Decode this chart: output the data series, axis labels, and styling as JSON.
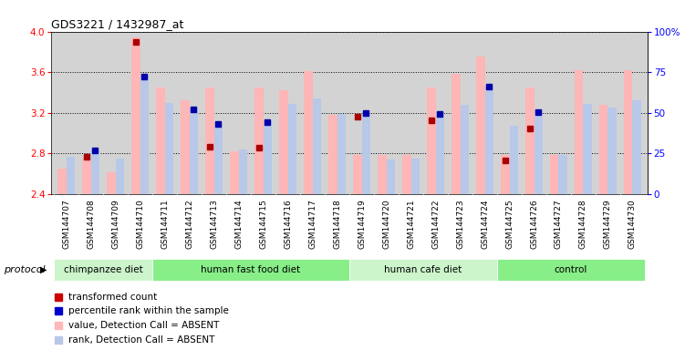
{
  "title": "GDS3221 / 1432987_at",
  "samples": [
    "GSM144707",
    "GSM144708",
    "GSM144709",
    "GSM144710",
    "GSM144711",
    "GSM144712",
    "GSM144713",
    "GSM144714",
    "GSM144715",
    "GSM144716",
    "GSM144717",
    "GSM144718",
    "GSM144719",
    "GSM144720",
    "GSM144721",
    "GSM144722",
    "GSM144723",
    "GSM144724",
    "GSM144725",
    "GSM144726",
    "GSM144727",
    "GSM144728",
    "GSM144729",
    "GSM144730"
  ],
  "value_absent": [
    2.65,
    2.75,
    2.62,
    3.94,
    3.45,
    3.32,
    3.45,
    2.82,
    3.45,
    3.42,
    3.61,
    3.18,
    2.79,
    2.79,
    2.79,
    3.45,
    3.58,
    3.75,
    2.79,
    3.45,
    2.79,
    3.62,
    3.28,
    3.62
  ],
  "rank_absent": [
    2.77,
    2.84,
    2.75,
    3.57,
    3.3,
    3.23,
    3.09,
    2.84,
    3.12,
    3.29,
    3.34,
    3.19,
    3.18,
    2.74,
    2.75,
    3.18,
    3.28,
    3.47,
    3.07,
    3.23,
    2.79,
    3.29,
    3.25,
    3.32
  ],
  "transformed_count": [
    null,
    2.77,
    null,
    3.9,
    null,
    null,
    2.87,
    null,
    2.86,
    null,
    null,
    null,
    3.16,
    null,
    null,
    3.13,
    null,
    null,
    2.73,
    3.05,
    null,
    null,
    null,
    null
  ],
  "percentile_rank": [
    null,
    2.83,
    null,
    3.56,
    null,
    3.23,
    3.09,
    null,
    3.11,
    null,
    null,
    null,
    3.2,
    null,
    null,
    3.19,
    null,
    3.46,
    null,
    3.21,
    null,
    null,
    null,
    null
  ],
  "protocols": [
    {
      "label": "chimpanzee diet",
      "start": 0,
      "end": 4
    },
    {
      "label": "human fast food diet",
      "start": 4,
      "end": 12
    },
    {
      "label": "human cafe diet",
      "start": 12,
      "end": 18
    },
    {
      "label": "control",
      "start": 18,
      "end": 24
    }
  ],
  "protocol_colors": [
    "#c8f5c8",
    "#98ee98",
    "#c8f5c8",
    "#98ee98"
  ],
  "ylim": [
    2.4,
    4.0
  ],
  "yticks": [
    2.4,
    2.8,
    3.2,
    3.6,
    4.0
  ],
  "right_yticks_pct": [
    0,
    25,
    50,
    75,
    100
  ],
  "right_ytick_labels": [
    "0",
    "25",
    "50",
    "75",
    "100%"
  ],
  "bar_color_value": "#ffb6b6",
  "bar_color_rank": "#b8c8e8",
  "dot_color_count": "#aa0000",
  "dot_color_rank": "#0000aa",
  "plot_bg_color": "#d3d3d3",
  "legend_items": [
    {
      "color": "#cc0000",
      "label": "transformed count"
    },
    {
      "color": "#0000cc",
      "label": "percentile rank within the sample"
    },
    {
      "color": "#ffb6b6",
      "label": "value, Detection Call = ABSENT"
    },
    {
      "color": "#b8c8e8",
      "label": "rank, Detection Call = ABSENT"
    }
  ]
}
